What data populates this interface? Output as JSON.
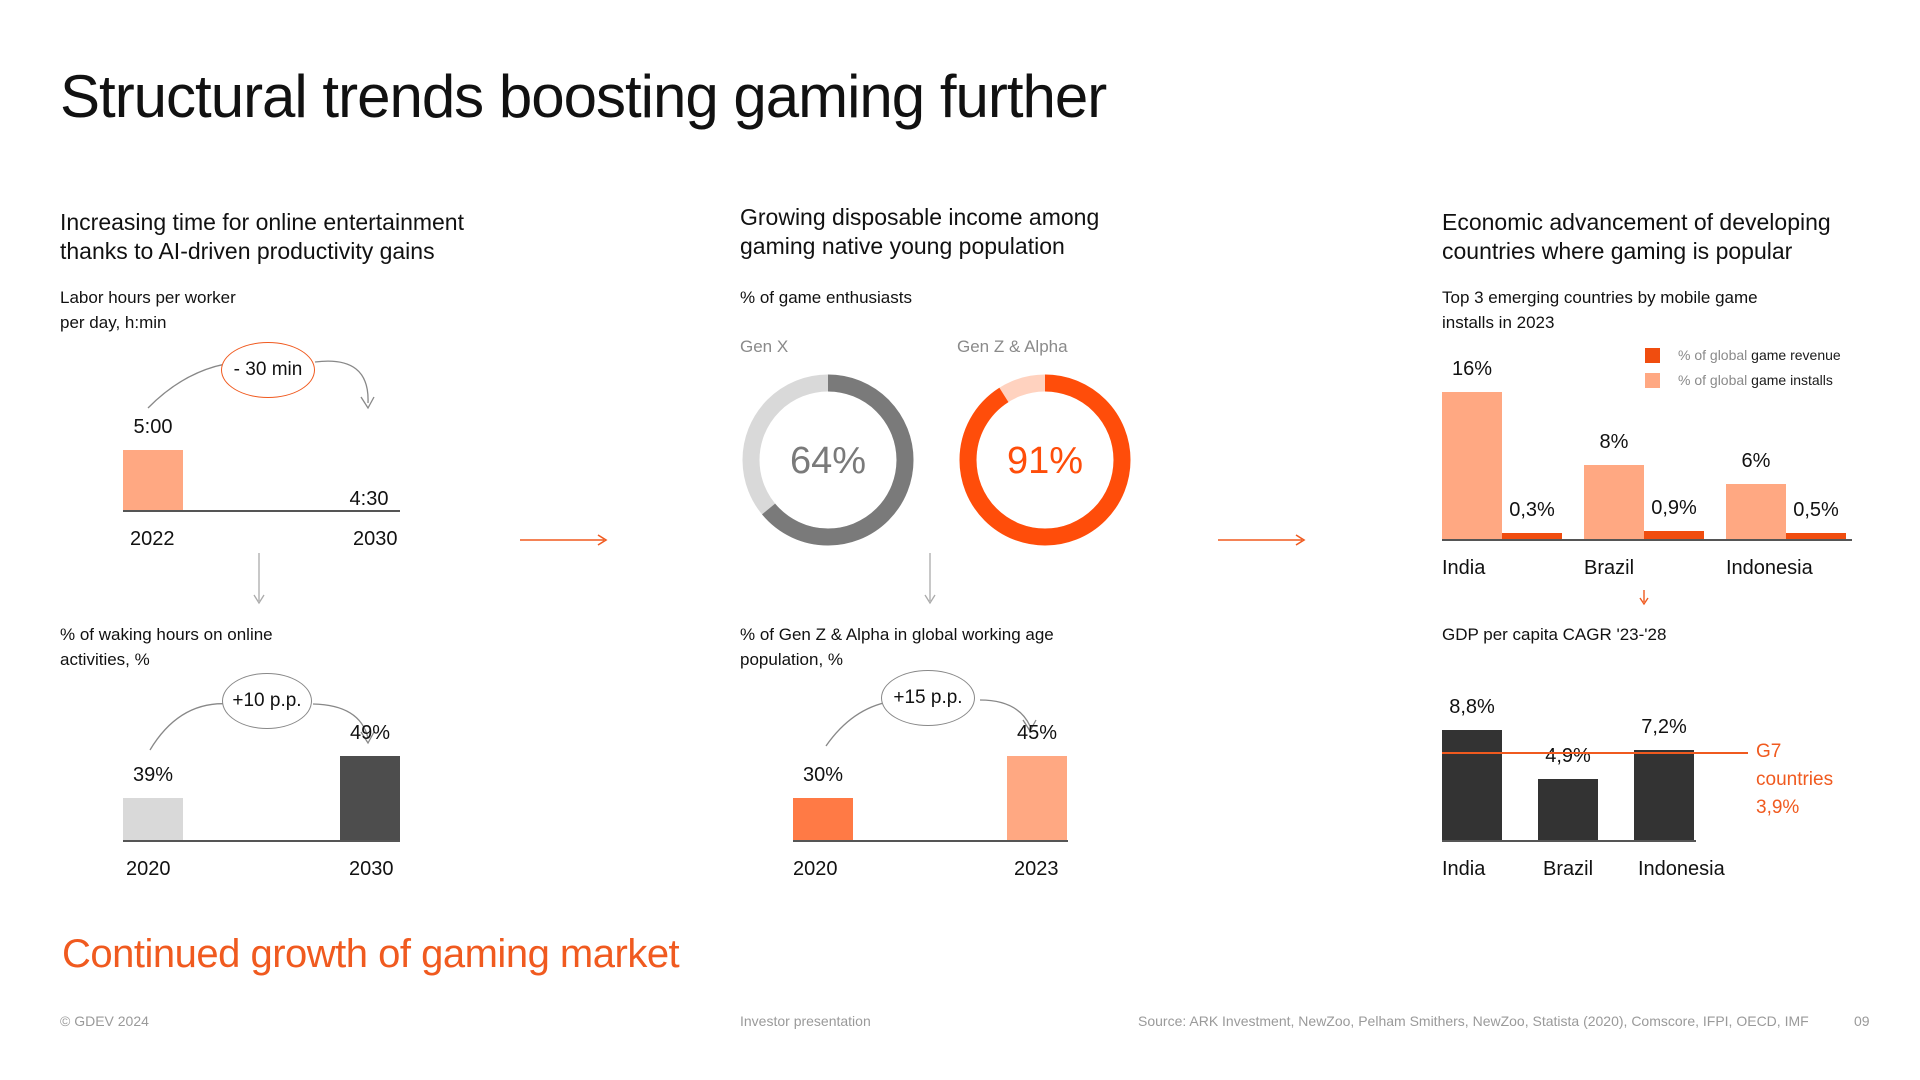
{
  "title": "Structural trends boosting gaming further",
  "tagline": "Continued growth of gaming market",
  "footer": {
    "copyright": "© GDEV 2024",
    "doc": "Investor presentation",
    "source": "Source: ARK Investment, NewZoo, Pelham Smithers, NewZoo, Statista (2020), Comscore, IFPI, OECD, IMF",
    "page": "09"
  },
  "colors": {
    "accent": "#f05a1f",
    "light_orange": "#ffa882",
    "mid_orange": "#ff7a45",
    "dark": "#333333",
    "grey_light": "#d9d9d9",
    "grey_ring": "#7a7a7a"
  },
  "col1": {
    "heading_line1": "Increasing time for online entertainment",
    "heading_line2": "thanks to AI-driven productivity gains"
  },
  "col2": {
    "heading_line1": "Growing disposable income among",
    "heading_line2": "gaming native young population"
  },
  "col3": {
    "heading_line1": "Economic advancement of developing",
    "heading_line2": "countries where gaming is popular"
  },
  "chart_data": [
    {
      "id": "labor_hours",
      "type": "bar",
      "title_line1": "Labor hours per worker",
      "title_line2": "per day, h:min",
      "categories": [
        "2022",
        "2030"
      ],
      "values": [
        300,
        270
      ],
      "value_labels": [
        "5:00",
        "4:30"
      ],
      "change_label": "- 30 min"
    },
    {
      "id": "waking_hours_online",
      "type": "bar",
      "title_line1": "% of waking hours on online",
      "title_line2": "activities, %",
      "categories": [
        "2020",
        "2030"
      ],
      "values": [
        39,
        49
      ],
      "value_labels": [
        "39%",
        "49%"
      ],
      "change_label": "+10 p.p."
    },
    {
      "id": "game_enthusiasts",
      "type": "pie",
      "title": "% of game enthusiasts",
      "series": [
        {
          "name": "Gen X",
          "value": 64,
          "label": "64%"
        },
        {
          "name": "Gen Z & Alpha",
          "value": 91,
          "label": "91%"
        }
      ]
    },
    {
      "id": "genz_working_age",
      "type": "bar",
      "title_line1": "% of Gen Z & Alpha in global working age",
      "title_line2": "population, %",
      "categories": [
        "2020",
        "2023"
      ],
      "values": [
        30,
        45
      ],
      "value_labels": [
        "30%",
        "45%"
      ],
      "change_label": "+15 p.p."
    },
    {
      "id": "mobile_installs",
      "type": "bar",
      "title_line1": "Top 3 emerging countries by mobile game",
      "title_line2": "installs in 2023",
      "categories": [
        "India",
        "Brazil",
        "Indonesia"
      ],
      "series": [
        {
          "name": "game installs",
          "name_prefix": "% of global",
          "values": [
            16,
            8,
            6
          ],
          "labels": [
            "16%",
            "8%",
            "6%"
          ]
        },
        {
          "name": "game revenue",
          "name_prefix": "% of global",
          "values": [
            0.3,
            0.9,
            0.5
          ],
          "labels": [
            "0,3%",
            "0,9%",
            "0,5%"
          ]
        }
      ],
      "legend_position": "top-right"
    },
    {
      "id": "gdp_cagr",
      "type": "bar",
      "title": "GDP per capita CAGR '23-'28",
      "categories": [
        "India",
        "Brazil",
        "Indonesia"
      ],
      "values": [
        8.8,
        4.9,
        7.2
      ],
      "value_labels": [
        "8,8%",
        "4,9%",
        "7,2%"
      ],
      "reference": {
        "value": 3.9,
        "label_line1": "G7",
        "label_line2": "countries",
        "label_line3": "3,9%"
      }
    }
  ]
}
